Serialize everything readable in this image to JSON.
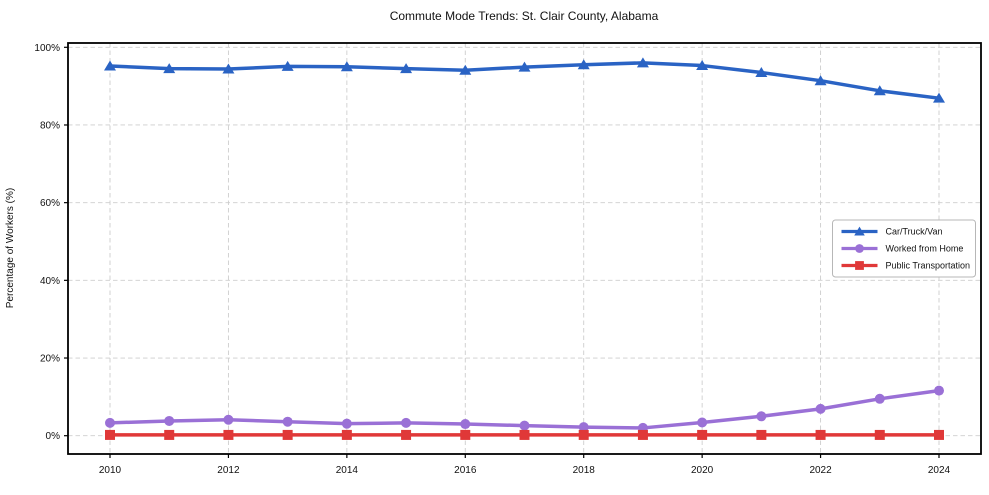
{
  "figure": {
    "background": "#ffffff",
    "frame_color": "#000000",
    "grid_color": "#cdcdcd"
  },
  "chart_data": {
    "type": "line",
    "title": "Commute Mode Trends: St. Clair County, Alabama",
    "xlabel": "",
    "ylabel": "Percentage of Workers (%)",
    "grid": true,
    "grid_style": "dashed",
    "legend_position": "center right",
    "xlim": [
      2009.3,
      2024.7
    ],
    "ylim": [
      -4.7,
      101.1
    ],
    "x": [
      2010,
      2011,
      2012,
      2013,
      2014,
      2015,
      2016,
      2017,
      2018,
      2019,
      2020,
      2021,
      2022,
      2023,
      2024
    ],
    "x_ticks": [
      2010,
      2012,
      2014,
      2016,
      2018,
      2020,
      2022,
      2024
    ],
    "x_tick_labels": [
      "2010",
      "2012",
      "2014",
      "2016",
      "2018",
      "2020",
      "2022",
      "2024"
    ],
    "y_ticks": [
      0,
      20,
      40,
      60,
      80,
      100
    ],
    "y_tick_labels": [
      "0%",
      "20%",
      "40%",
      "60%",
      "80%",
      "100%"
    ],
    "series": [
      {
        "name": "Car/Truck/Van",
        "color": "#2a63c4",
        "marker": "triangle",
        "values": [
          95.2,
          94.5,
          94.4,
          95.1,
          95.0,
          94.5,
          94.1,
          94.9,
          95.5,
          96.0,
          95.3,
          93.5,
          91.4,
          88.8,
          86.9
        ]
      },
      {
        "name": "Worked from Home",
        "color": "#9a70d6",
        "marker": "circle",
        "values": [
          3.3,
          3.8,
          4.1,
          3.6,
          3.1,
          3.3,
          3.0,
          2.6,
          2.2,
          2.0,
          3.4,
          5.0,
          6.9,
          9.5,
          11.6
        ]
      },
      {
        "name": "Public Transportation",
        "color": "#e03838",
        "marker": "square",
        "values": [
          0.2,
          0.2,
          0.2,
          0.2,
          0.2,
          0.2,
          0.2,
          0.2,
          0.2,
          0.2,
          0.2,
          0.2,
          0.2,
          0.2,
          0.2
        ]
      }
    ]
  }
}
